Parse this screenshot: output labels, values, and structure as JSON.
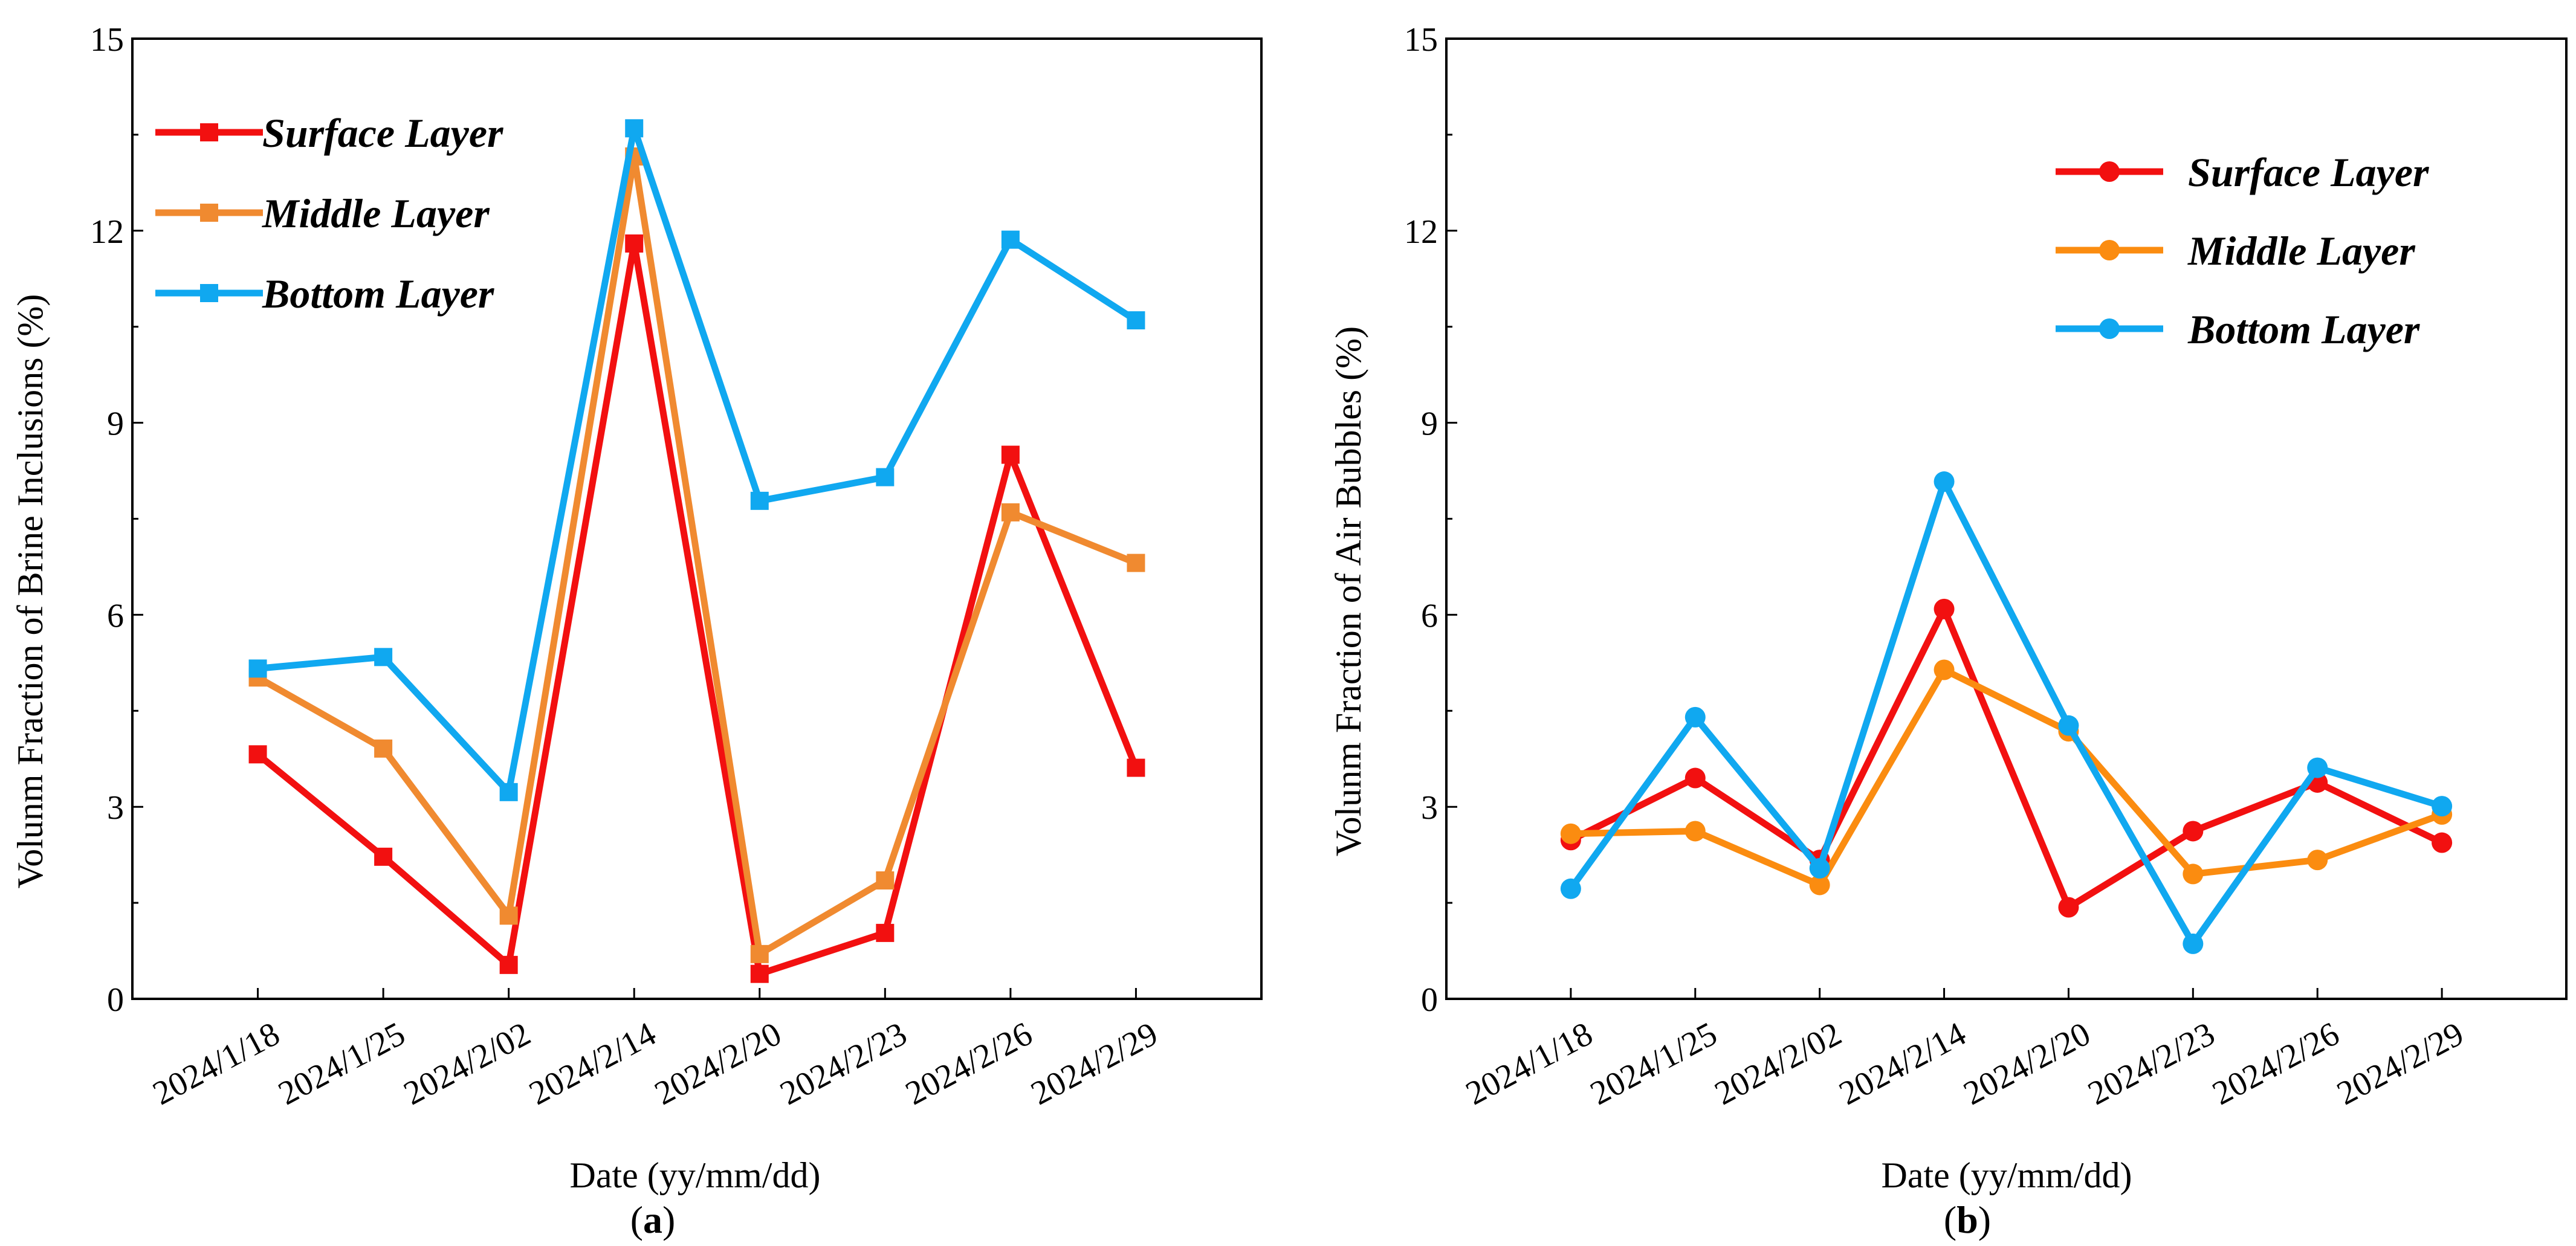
{
  "chart_data": [
    {
      "type": "line",
      "panel_label": "(a)",
      "caption": "a",
      "xlabel": "Date  (yy/mm/dd)",
      "ylabel": "Volunm Fraction of Brine Inclusions  (%)",
      "categories": [
        "2024/1/18",
        "2024/1/25",
        "2024/2/02",
        "2024/2/14",
        "2024/2/20",
        "2024/2/23",
        "2024/2/26",
        "2024/2/29"
      ],
      "ylim": [
        0,
        15
      ],
      "yticks": [
        0,
        3,
        6,
        9,
        12,
        15
      ],
      "marker": "square",
      "legend_position": "top-left",
      "series": [
        {
          "name": "Surface  Layer",
          "color": "#f21010",
          "values": [
            3.82,
            2.22,
            0.53,
            11.8,
            0.39,
            1.03,
            8.5,
            3.61
          ]
        },
        {
          "name": "Middle  Layer",
          "color": "#f08a30",
          "values": [
            5.02,
            3.91,
            1.3,
            13.16,
            0.7,
            1.85,
            7.6,
            6.81
          ]
        },
        {
          "name": "Bottom Layer",
          "color": "#10a8f0",
          "values": [
            5.16,
            5.34,
            3.23,
            13.6,
            7.78,
            8.15,
            11.86,
            10.6
          ]
        }
      ]
    },
    {
      "type": "line",
      "panel_label": "(b)",
      "caption": "b",
      "xlabel": "Date  (yy/mm/dd)",
      "ylabel": "Volunm Fraction of Air Bubbles  (%)",
      "categories": [
        "2024/1/18",
        "2024/1/25",
        "2024/2/02",
        "2024/2/14",
        "2024/2/20",
        "2024/2/23",
        "2024/2/26",
        "2024/2/29"
      ],
      "ylim": [
        0,
        15
      ],
      "yticks": [
        0,
        3,
        6,
        9,
        12,
        15
      ],
      "marker": "circle",
      "legend_position": "top-right",
      "series": [
        {
          "name": "Surface  Layer",
          "color": "#f21010",
          "values": [
            2.48,
            3.45,
            2.17,
            6.09,
            1.43,
            2.62,
            3.38,
            2.44
          ]
        },
        {
          "name": "Middle  Layer",
          "color": "#fb8c10",
          "values": [
            2.58,
            2.62,
            1.78,
            5.14,
            4.18,
            1.95,
            2.17,
            2.88
          ]
        },
        {
          "name": "Bottom Layer",
          "color": "#10a8f0",
          "values": [
            1.72,
            4.4,
            2.04,
            8.08,
            4.27,
            0.86,
            3.61,
            3.01
          ]
        }
      ]
    }
  ]
}
